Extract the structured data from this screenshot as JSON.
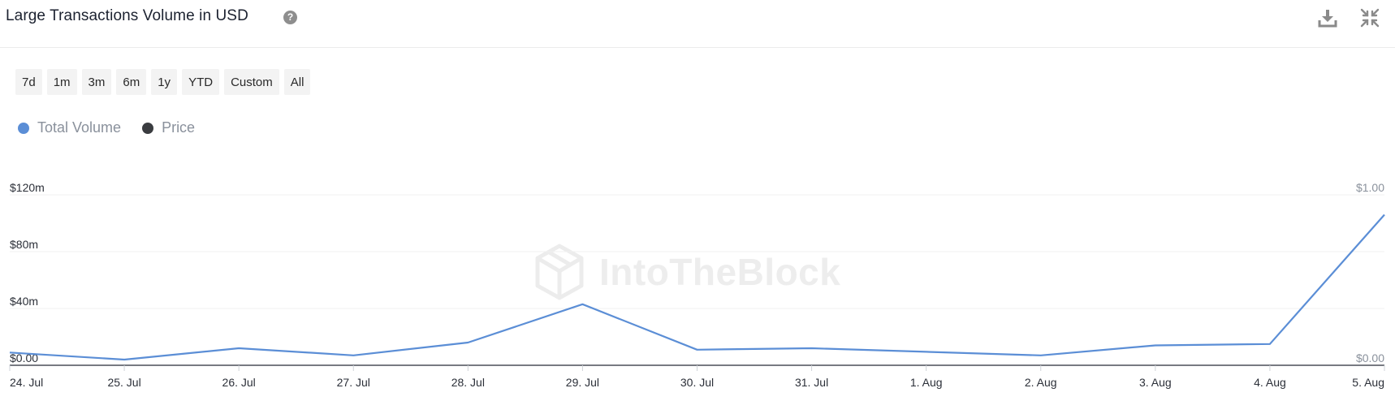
{
  "header": {
    "title": "Large Transactions Volume in USD",
    "help_icon": "?"
  },
  "range_buttons": [
    "7d",
    "1m",
    "3m",
    "6m",
    "1y",
    "YTD",
    "Custom",
    "All"
  ],
  "legend": [
    {
      "label": "Total Volume",
      "color": "#5b8ed6"
    },
    {
      "label": "Price",
      "color": "#3a3c40"
    }
  ],
  "watermark": "IntoTheBlock",
  "chart_data": {
    "type": "line",
    "x": [
      "24. Jul",
      "25. Jul",
      "26. Jul",
      "27. Jul",
      "28. Jul",
      "29. Jul",
      "30. Jul",
      "31. Jul",
      "1. Aug",
      "2. Aug",
      "3. Aug",
      "4. Aug",
      "5. Aug"
    ],
    "series": [
      {
        "name": "Total Volume",
        "color": "#5b8ed6",
        "values": [
          9,
          4,
          12,
          7,
          16,
          43,
          11,
          12,
          null,
          7,
          14,
          15,
          106
        ]
      }
    ],
    "y_left": {
      "ticks": [
        "$0.00",
        "$40m",
        "$80m",
        "$120m"
      ],
      "values": [
        0,
        40,
        80,
        120
      ],
      "ylim": [
        0,
        120
      ]
    },
    "y_right": {
      "ticks": [
        "$0.00",
        "$1.00"
      ],
      "values": [
        0,
        1
      ],
      "ylim": [
        0,
        1
      ]
    },
    "grid": true
  }
}
